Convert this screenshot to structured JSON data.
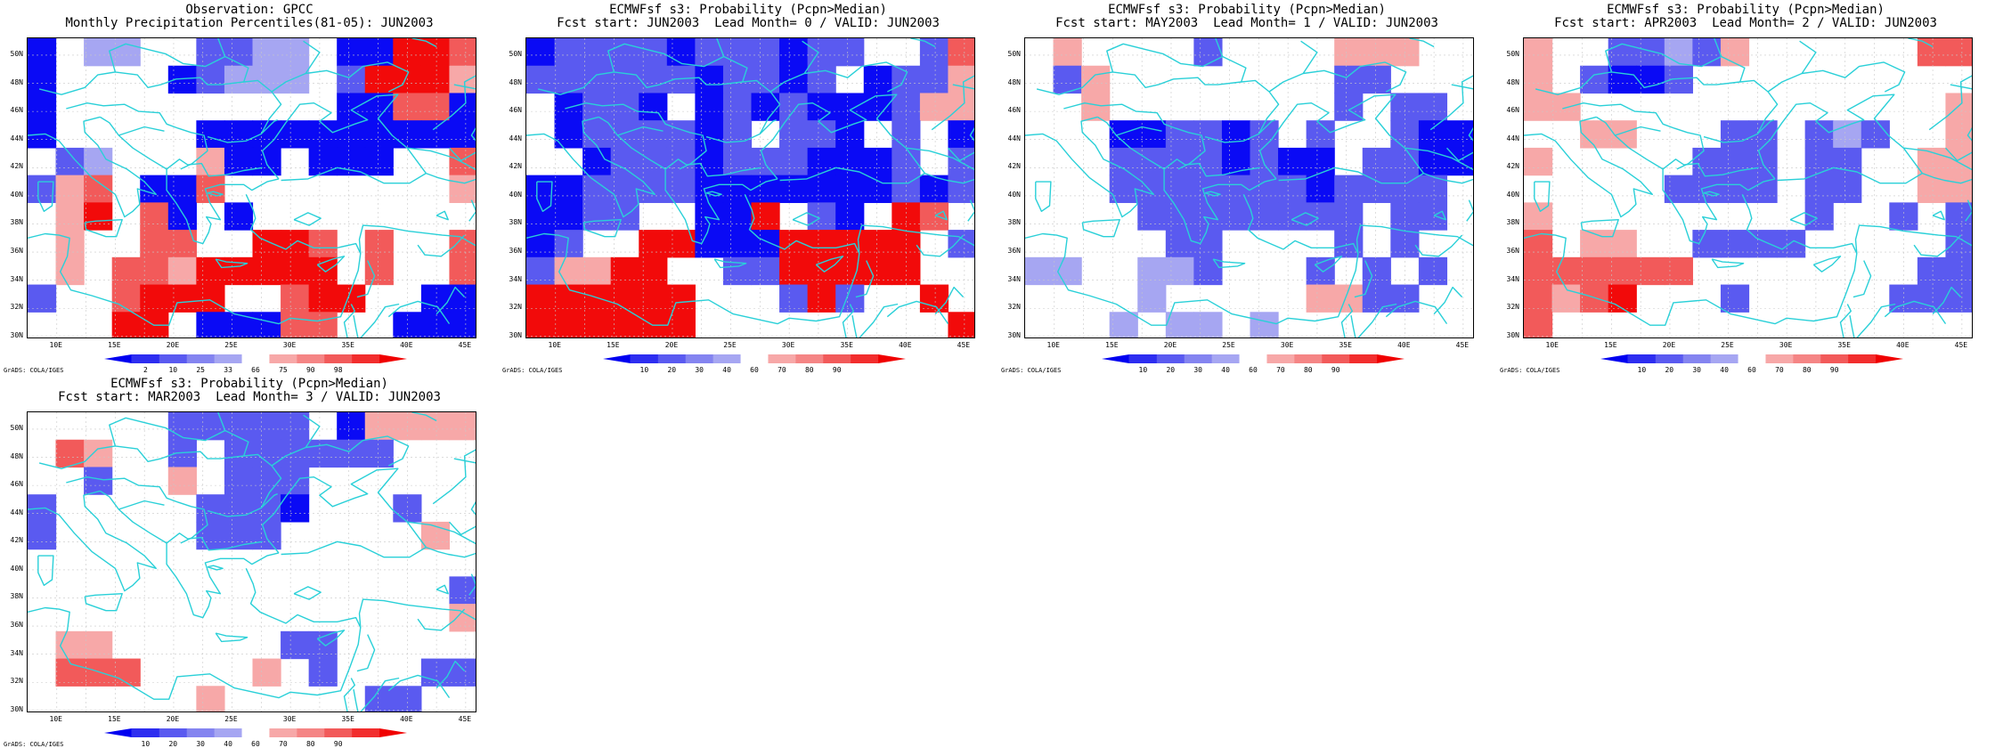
{
  "lon_labels": [
    "10E",
    "15E",
    "20E",
    "25E",
    "30E",
    "35E",
    "40E",
    "45E"
  ],
  "lat_labels": [
    "50N",
    "48N",
    "46N",
    "44N",
    "42N",
    "40N",
    "38N",
    "36N",
    "34N",
    "32N",
    "30N"
  ],
  "credit": "GrADS: COLA/IGES",
  "colors": {
    "deep_blue": "#0a0af5",
    "mid_blue": "#5a5af0",
    "light_blue": "#a6a6f2",
    "white": "#ffffff",
    "light_red": "#f7a8a8",
    "mid_red": "#f25a5a",
    "deep_red": "#f20a0a",
    "coast": "#2ad0d8"
  },
  "panels": [
    {
      "title1": "Observation: GPCC",
      "title2": "Monthly Precipitation Percentiles(81-05): JUN2003",
      "colorbar_labels": [
        "2",
        "10",
        "25",
        "33",
        "66",
        "75",
        "90",
        "98"
      ],
      "grid": [
        "1033002233011665",
        "1000012333026664",
        "1000000000011551",
        "1000001111111111",
        "0230004110111005",
        "2450115000000004",
        "0460510100000000",
        "0400550066505005",
        "0405546666605005",
        "2005666005660011",
        "0006601115500111"
      ]
    },
    {
      "title1": "ECMWFsf s3: Probability (Pcpn>Median)",
      "title2": "Fcst start: JUN2003  Lead Month= 0 / VALID: JUN2003",
      "colorbar_labels": [
        "10",
        "20",
        "30",
        "40",
        "60",
        "70",
        "80",
        "90"
      ],
      "grid": [
        "1222212221220025",
        "2222221221201224",
        "0122101212111244",
        "0122221202210201",
        "0012221222111202",
        "1122221111111212",
        "1122001160210650",
        "1200661116666602",
        "2446600226666600",
        "6666660002620060",
        "6666660000000006"
      ]
    },
    {
      "title1": "ECMWFsf s3: Probability (Pcpn>Median)",
      "title2": "Fcst start: MAY2003  Lead Month= 1 / VALID: JUN2003",
      "colorbar_labels": [
        "10",
        "20",
        "30",
        "40",
        "60",
        "70",
        "80",
        "90"
      ],
      "grid": [
        "0400002000044400",
        "0240000000022000",
        "0040000000020220",
        "0001122120200211",
        "0002222121102211",
        "0002222222122220",
        "0000222222220220",
        "0000022000020200",
        "3300332000202020",
        "0000300000442200",
        "0003033030000000"
      ]
    },
    {
      "title1": "ECMWFsf s3: Probability (Pcpn>Median)",
      "title2": "Fcst start: APR2003  Lead Month= 2 / VALID: JUN2003",
      "colorbar_labels": [
        "10",
        "20",
        "30",
        "40",
        "60",
        "70",
        "80",
        "90"
      ],
      "grid": [
        "4002232400000055",
        "4021120000000000",
        "4400000000000004",
        "0044000220232004",
        "4000002220220044",
        "0000022220220044",
        "4000000000200202",
        "5044002222000002",
        "5555550000000022",
        "5456000200000222",
        "5000000000000000"
      ]
    },
    {
      "title1": "ECMWFsf s3: Probability (Pcpn>Median)",
      "title2": "Fcst start: MAR2003  Lead Month= 3 / VALID: JUN2003",
      "colorbar_labels": [
        "10",
        "20",
        "30",
        "40",
        "60",
        "70",
        "80",
        "90"
      ],
      "grid": [
        "0000022222014444",
        "0540020222222000",
        "0020040222000000",
        "2000002221000200",
        "2000002220000040",
        "0000000000000000",
        "0000000000000002",
        "0000000000000004",
        "0440000002200000",
        "0555000040200022",
        "0000004000002200"
      ]
    }
  ]
}
